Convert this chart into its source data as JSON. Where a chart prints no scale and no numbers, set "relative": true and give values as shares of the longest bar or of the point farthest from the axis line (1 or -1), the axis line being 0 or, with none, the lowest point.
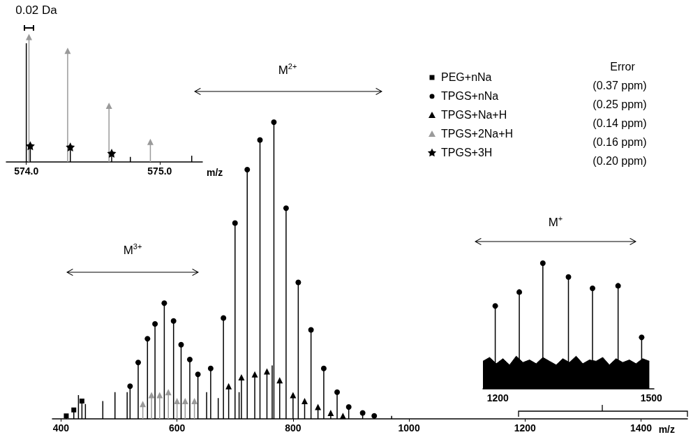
{
  "chart_data": [
    {
      "type": "lollipop",
      "relative": true,
      "xlabel": "m/z",
      "xlim": [
        385,
        1480
      ],
      "xticks": [
        400,
        600,
        800,
        1000,
        1200,
        1400
      ],
      "legend": "top right",
      "annotations": [
        "M$^{3+}$",
        "M$^{2+}$",
        "Error",
        "(0.37 ppm)",
        "(0.25 ppm)",
        "(0.14 ppm)",
        "(0.16 ppm)",
        "(0.20 ppm)"
      ],
      "series": [
        {
          "type": "bar",
          "color": "#000000",
          "x": [
            430,
            442,
            472,
            493,
            514,
            651,
            671,
            707,
            764,
            970
          ],
          "values": [
            0.08,
            0.05,
            0.06,
            0.09,
            0.09,
            0.09,
            0.07,
            0.09,
            0.18,
            0.01
          ]
        },
        {
          "name": "PEG+nNa",
          "marker": "square",
          "color": "#000000",
          "x": [
            409,
            422,
            436
          ],
          "values": [
            0.01,
            0.03,
            0.06
          ]
        },
        {
          "name": "TPGS+nNa",
          "marker": "circle",
          "color": "#000000",
          "x": [
            519,
            533,
            549,
            562,
            578,
            594,
            607,
            622,
            636,
            658,
            680,
            700,
            721,
            743,
            767,
            788,
            809,
            831,
            853,
            876,
            896,
            920,
            940
          ],
          "values": [
            0.11,
            0.19,
            0.27,
            0.32,
            0.39,
            0.33,
            0.25,
            0.2,
            0.15,
            0.17,
            0.34,
            0.66,
            0.84,
            0.94,
            1,
            0.71,
            0.46,
            0.3,
            0.17,
            0.09,
            0.04,
            0.02,
            0.01
          ]
        },
        {
          "name": "TPGS+Na+H",
          "marker": "triangle",
          "color": "#000000",
          "x": [
            689,
            711,
            734,
            755,
            777,
            800,
            820,
            843,
            865,
            886
          ],
          "values": [
            0.11,
            0.14,
            0.15,
            0.16,
            0.13,
            0.08,
            0.06,
            0.04,
            0.02,
            0.01
          ]
        },
        {
          "name": "TPGS+2Na+H",
          "marker": "triangle",
          "color": "#9a9a9a",
          "x": [
            541,
            556,
            570,
            585,
            600,
            614,
            630
          ],
          "values": [
            0.05,
            0.08,
            0.08,
            0.09,
            0.06,
            0.06,
            0.06
          ]
        }
      ]
    },
    {
      "type": "lollipop",
      "relative": true,
      "xlabel": "m/z",
      "xlim": [
        573.85,
        575.32
      ],
      "xticks": [
        {
          "value": 574,
          "label": "574.0"
        },
        {
          "value": 575,
          "label": "575.0"
        }
      ],
      "annotations": [
        "0.02 Da"
      ],
      "series": [
        {
          "type": "bar",
          "color": "#000000",
          "x": [
            574.0,
            574.78,
            575.24
          ],
          "values": [
            0.95,
            0.04,
            0.05
          ]
        },
        {
          "marker": "triangle",
          "color": "#9a9a9a",
          "x": [
            574.02,
            574.31,
            574.62,
            574.93
          ],
          "values": [
            1,
            0.89,
            0.45,
            0.16
          ]
        },
        {
          "name": "TPGS+3H",
          "marker": "star",
          "color": "#000000",
          "x": [
            574.03,
            574.33,
            574.64
          ],
          "values": [
            0.13,
            0.12,
            0.07
          ]
        }
      ]
    },
    {
      "type": "lollipop",
      "relative": true,
      "xlim": [
        1171,
        1505
      ],
      "xticks": [
        1200,
        1500
      ],
      "annotations": [
        "M$^{+}$"
      ],
      "series": [
        {
          "type": "area",
          "color": "#000000",
          "x": [
            1171,
            1184,
            1197,
            1210,
            1223,
            1236,
            1249,
            1262,
            1275,
            1288,
            1301,
            1314,
            1327,
            1340,
            1353,
            1366,
            1379,
            1392,
            1405,
            1418,
            1431,
            1444,
            1457,
            1470,
            1483,
            1496
          ],
          "values": [
            0.22,
            0.25,
            0.2,
            0.24,
            0.19,
            0.26,
            0.21,
            0.23,
            0.2,
            0.25,
            0.22,
            0.19,
            0.24,
            0.21,
            0.26,
            0.2,
            0.23,
            0.22,
            0.25,
            0.19,
            0.24,
            0.21,
            0.23,
            0.2,
            0.24,
            0.22
          ]
        },
        {
          "marker": "circle",
          "color": "#000000",
          "x": [
            1195,
            1242,
            1288,
            1338,
            1385,
            1435,
            1481
          ],
          "values": [
            0.66,
            0.77,
            1,
            0.89,
            0.8,
            0.82,
            0.41
          ]
        }
      ]
    }
  ]
}
